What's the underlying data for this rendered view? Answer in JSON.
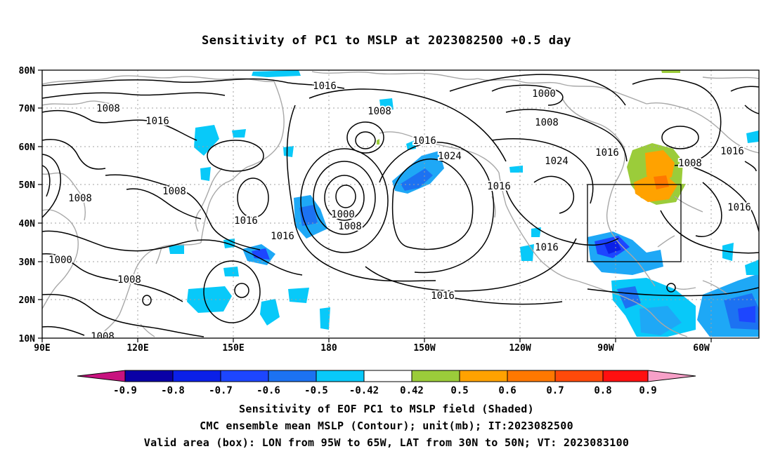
{
  "title": "Sensitivity of PC1 to MSLP at 2023082500 +0.5 day",
  "lat_labels": [
    "80N",
    "70N",
    "60N",
    "50N",
    "40N",
    "30N",
    "20N",
    "10N"
  ],
  "lon_labels": [
    "90E",
    "120E",
    "150E",
    "180",
    "150W",
    "120W",
    "90W",
    "60W"
  ],
  "colorbar": {
    "labels": [
      "-0.9",
      "-0.8",
      "-0.7",
      "-0.6",
      "-0.5",
      "-0.42",
      "0.42",
      "0.5",
      "0.6",
      "0.7",
      "0.8",
      "0.9"
    ],
    "colors": [
      "#c8127f",
      "#0a00a6",
      "#0b20e8",
      "#1d46ff",
      "#1c72f2",
      "#1ea8f6",
      "#08c9f9",
      "#ffffff",
      "#9bcc3a",
      "#ffa200",
      "#ff7800",
      "#ff4a0a",
      "#ff1010",
      "#f7a0c8"
    ]
  },
  "contour_labels": [
    "1016",
    "1000",
    "1008",
    "1016",
    "1008",
    "1016",
    "1024",
    "1024",
    "1016",
    "1016",
    "1008",
    "1016",
    "1008",
    "1008",
    "1016",
    "1016",
    "1000",
    "1008",
    "1016",
    "1008",
    "1016",
    "1016",
    "1000",
    "1008",
    "1008"
  ],
  "valid_box": {
    "lon": [
      "95W",
      "65W"
    ],
    "lat": [
      "30N",
      "50N"
    ]
  },
  "captions": [
    "Sensitivity of EOF PC1 to MSLP field (Shaded)",
    "CMC ensemble mean MSLP (Contour); unit(mb); IT:2023082500",
    "Valid area (box): LON from 95W to 65W, LAT from 30N to 50N; VT: 2023083100"
  ]
}
